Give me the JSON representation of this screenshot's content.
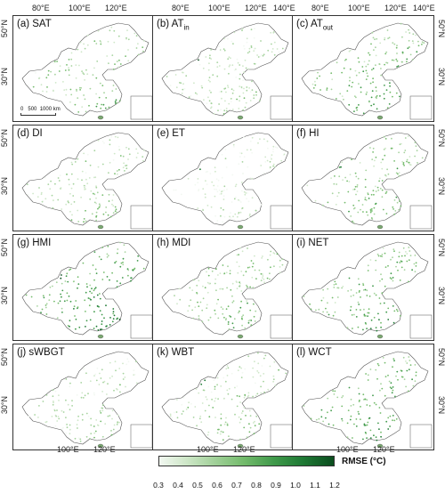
{
  "panels": [
    {
      "letter": "(a)",
      "name": "SAT",
      "sub": "",
      "intensity": 0.55
    },
    {
      "letter": "(b)",
      "name": "AT",
      "sub": "in",
      "intensity": 0.35
    },
    {
      "letter": "(c)",
      "name": "AT",
      "sub": "out",
      "intensity": 0.65
    },
    {
      "letter": "(d)",
      "name": "DI",
      "sub": "",
      "intensity": 0.45
    },
    {
      "letter": "(e)",
      "name": "ET",
      "sub": "",
      "intensity": 0.2
    },
    {
      "letter": "(f)",
      "name": "HI",
      "sub": "",
      "intensity": 0.6
    },
    {
      "letter": "(g)",
      "name": "HMI",
      "sub": "",
      "intensity": 0.85
    },
    {
      "letter": "(h)",
      "name": "MDI",
      "sub": "",
      "intensity": 0.55
    },
    {
      "letter": "(i)",
      "name": "NET",
      "sub": "",
      "intensity": 0.75
    },
    {
      "letter": "(j)",
      "name": "sWBGT",
      "sub": "",
      "intensity": 0.4
    },
    {
      "letter": "(k)",
      "name": "WBT",
      "sub": "",
      "intensity": 0.45
    },
    {
      "letter": "(l)",
      "name": "WCT",
      "sub": "",
      "intensity": 0.8
    }
  ],
  "lon_ticks_top": [
    "80°E",
    "100°E",
    "120°E",
    "140°E"
  ],
  "lon_ticks_bottom": [
    "100°E",
    "120°E"
  ],
  "lat_ticks": [
    "50°N",
    "30°N"
  ],
  "scale_bar": {
    "zero": "0",
    "mid": "500",
    "end": "1000 km"
  },
  "colorbar": {
    "title": "RMSE (°C)",
    "min": 0.3,
    "max": 1.2,
    "ticks": [
      "0.3",
      "0.4",
      "0.5",
      "0.6",
      "0.7",
      "0.8",
      "0.9",
      "1.0",
      "1.1",
      "1.2"
    ],
    "colors": [
      "#f2f8f1",
      "#cfe7c9",
      "#a6d39e",
      "#74bb6c",
      "#3f994a",
      "#1f7a35",
      "#0b4d1e"
    ]
  }
}
